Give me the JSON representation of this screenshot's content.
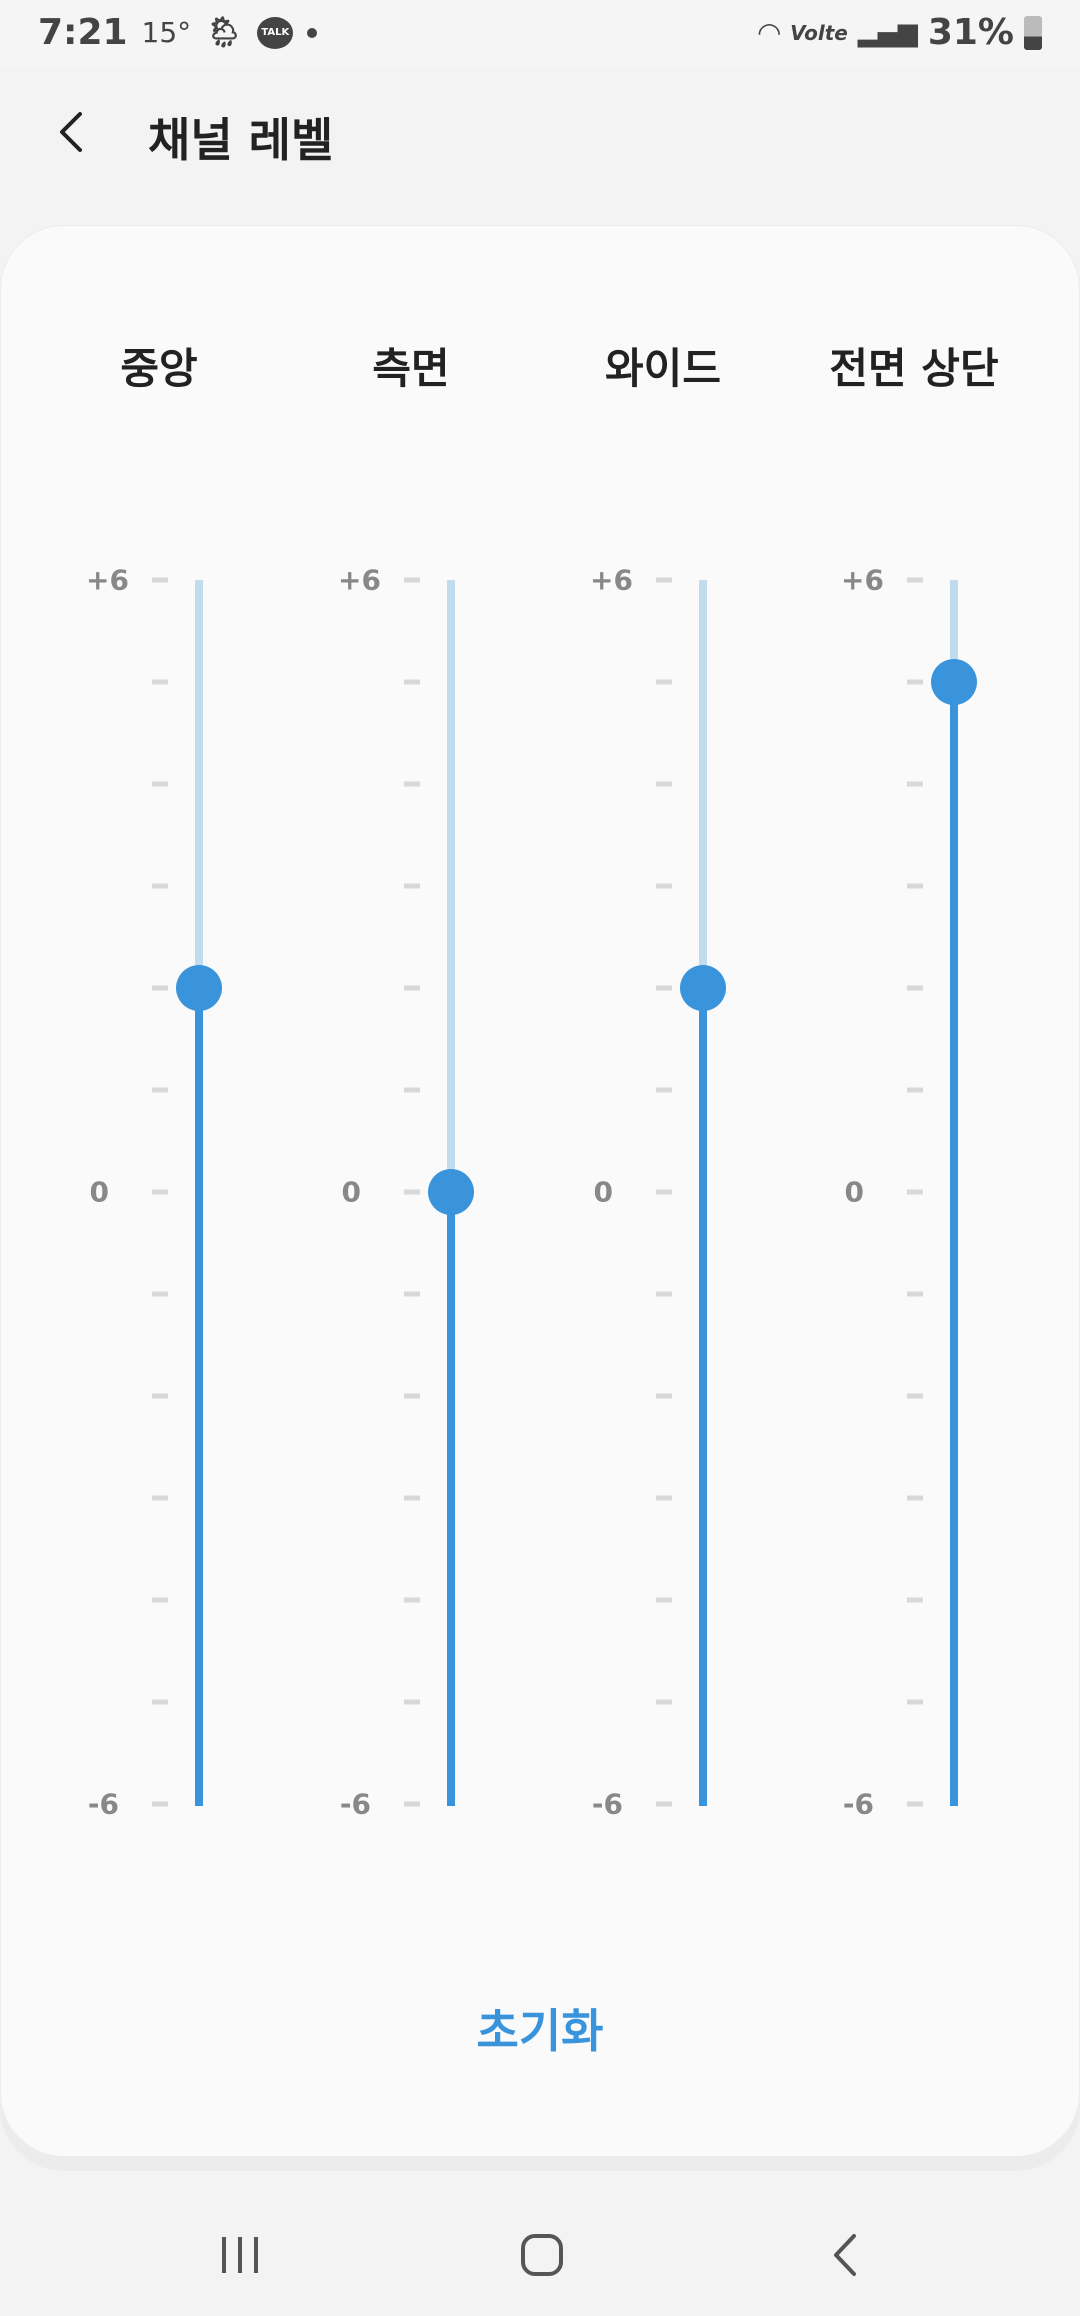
{
  "status_bar": {
    "time": "7:21",
    "temperature": "15°",
    "talk_badge": "TALK",
    "network": "Volte",
    "battery": "31%"
  },
  "header": {
    "title": "채널 레벨",
    "back_icon": "chevron-left-icon"
  },
  "scale": {
    "max_label": "+6",
    "zero_label": "0",
    "min_label": "-6",
    "min": -6,
    "max": 6,
    "step": 1
  },
  "channels": [
    {
      "label": "중앙",
      "value": 2
    },
    {
      "label": "측면",
      "value": 0
    },
    {
      "label": "와이드",
      "value": 2
    },
    {
      "label": "전면 상단",
      "value": 5
    }
  ],
  "colors": {
    "accent": "#3a94dc",
    "track_inactive": "#c2dcef"
  },
  "reset_label": "초기화",
  "nav": {
    "recents": "recents-icon",
    "home": "home-icon",
    "back": "back-icon"
  }
}
